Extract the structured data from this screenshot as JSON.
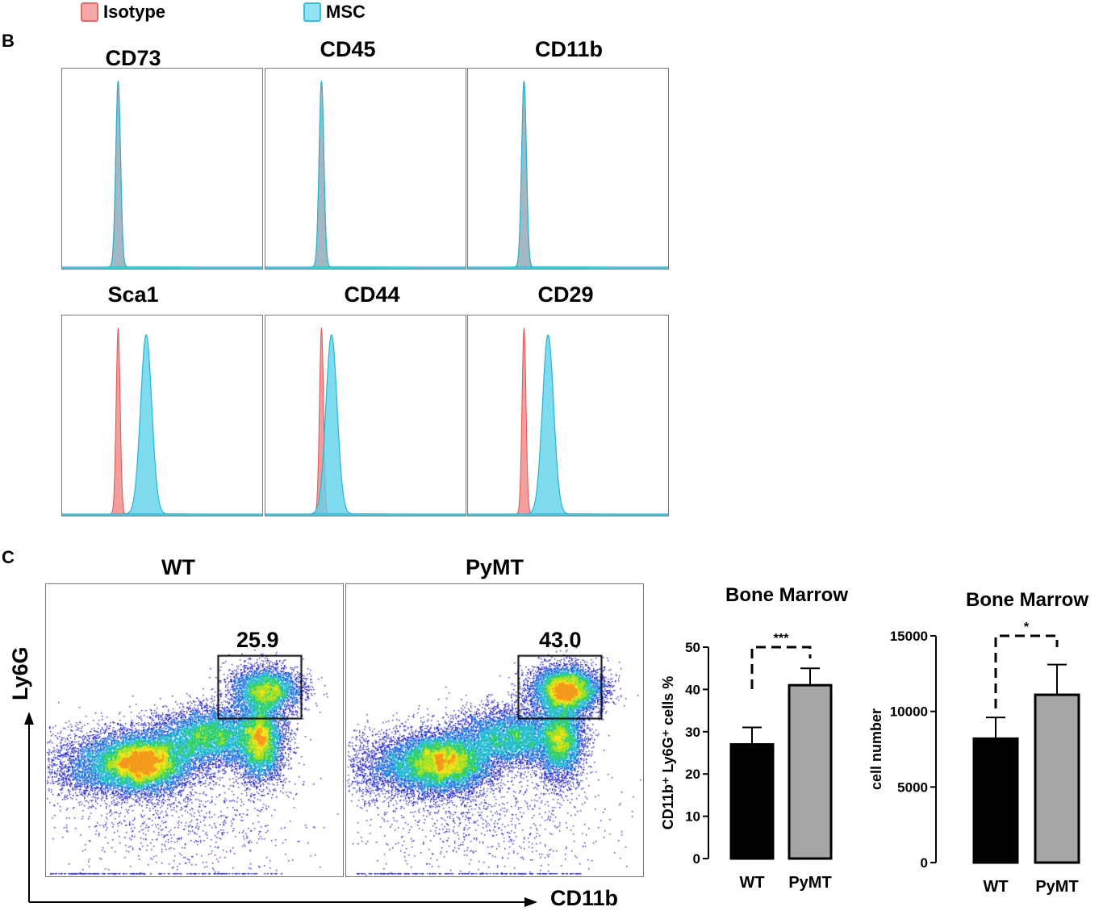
{
  "legend": [
    {
      "label": "Isotype",
      "color": "#f28c8c"
    },
    {
      "label": "MSC",
      "color": "#5fd3ea"
    }
  ],
  "panel_b_label": "B",
  "panel_c_label": "C",
  "histograms": [
    {
      "title": "CD73",
      "isotype_peak": 0.28,
      "msc_peak": 0.28
    },
    {
      "title": "CD45",
      "isotype_peak": 0.28,
      "msc_peak": 0.28
    },
    {
      "title": "CD11b",
      "isotype_peak": 0.28,
      "msc_peak": 0.28
    },
    {
      "title": "Sca1",
      "isotype_peak": 0.28,
      "msc_peak": 0.42
    },
    {
      "title": "CD44",
      "isotype_peak": 0.28,
      "msc_peak": 0.33
    },
    {
      "title": "CD29",
      "isotype_peak": 0.28,
      "msc_peak": 0.4
    }
  ],
  "flow": {
    "y_axis_label": "Ly6G",
    "x_axis_label": "CD11b",
    "plots": [
      {
        "title": "WT",
        "gate_value": "25.9"
      },
      {
        "title": "PyMT",
        "gate_value": "43.0"
      }
    ]
  },
  "chart_data": [
    {
      "type": "bar",
      "title": "Bone Marrow",
      "ylabel": "CD11b⁺ Ly6G⁺ cells %",
      "categories": [
        "WT",
        "PyMT"
      ],
      "values": [
        27,
        41
      ],
      "errors": [
        4,
        4
      ],
      "ylim": [
        0,
        50
      ],
      "yticks": [
        "0",
        "10",
        "20",
        "30",
        "40",
        "50"
      ],
      "significance": "***",
      "colors": [
        "#000000",
        "#a6a6a8"
      ]
    },
    {
      "type": "bar",
      "title": "Bone Marrow",
      "ylabel": "cell number",
      "categories": [
        "WT",
        "PyMT"
      ],
      "values": [
        8200,
        11100
      ],
      "errors": [
        1400,
        2000
      ],
      "ylim": [
        0,
        15000
      ],
      "yticks": [
        "0",
        "5000",
        "10000",
        "15000"
      ],
      "significance": "*",
      "colors": [
        "#000000",
        "#a6a6a8"
      ]
    }
  ]
}
